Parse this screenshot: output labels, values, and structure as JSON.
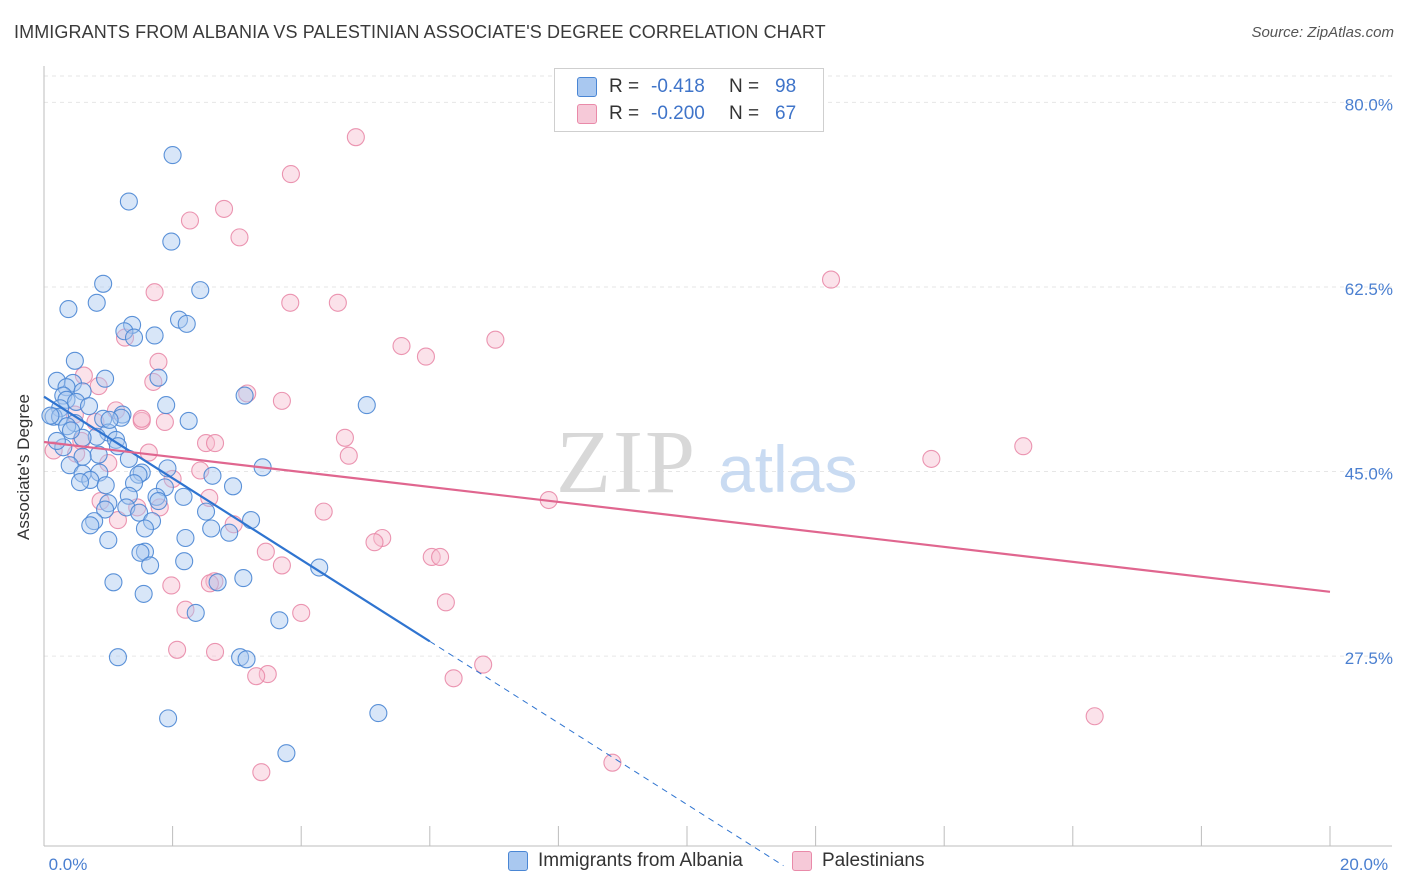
{
  "title": "IMMIGRANTS FROM ALBANIA VS PALESTINIAN ASSOCIATE'S DEGREE CORRELATION CHART",
  "source": "Source: ZipAtlas.com",
  "watermark": {
    "zip": "ZIP",
    "atlas": "atlas"
  },
  "colors": {
    "blue_fill": "#a9c8f0",
    "blue_stroke": "#4a86d4",
    "blue_line": "#2f74d0",
    "pink_fill": "#f6bfd0",
    "pink_stroke": "#e98aa9",
    "pink_line": "#e0668f",
    "tick_text": "#4a7fd0",
    "grid": "#e6e6e6"
  },
  "legend_top": {
    "rows": [
      {
        "r_label": "R =",
        "r_value": "-0.418",
        "n_label": "N =",
        "n_value": "98",
        "series": "blue"
      },
      {
        "r_label": "R =",
        "r_value": "-0.200",
        "n_label": "N =",
        "n_value": "67",
        "series": "pink"
      }
    ]
  },
  "legend_bottom": {
    "items": [
      {
        "label": "Immigrants from Albania",
        "series": "blue"
      },
      {
        "label": "Palestinians",
        "series": "pink"
      }
    ]
  },
  "chart_data": {
    "type": "scatter",
    "title": "IMMIGRANTS FROM ALBANIA VS PALESTINIAN ASSOCIATE'S DEGREE CORRELATION CHART",
    "xlabel": "",
    "ylabel": "Associate's Degree",
    "xlim": [
      0,
      20
    ],
    "ylim": [
      9.5,
      82.5
    ],
    "x_ticks": [
      0,
      20
    ],
    "x_tick_labels": [
      "0.0%",
      "20.0%"
    ],
    "y_ticks": [
      27.5,
      45.0,
      62.5,
      80.0
    ],
    "y_tick_labels": [
      "27.5%",
      "45.0%",
      "62.5%",
      "80.0%"
    ],
    "grid": true,
    "legend_position": "top-center",
    "series": [
      {
        "name": "Immigrants from Albania",
        "color": "blue",
        "r": -0.418,
        "n": 98,
        "trend": {
          "x0": 0,
          "y0": 52.1,
          "x1": 6.0,
          "y1": 28.9,
          "dashed_to_x": 11.5
        },
        "points": [
          [
            2.0,
            75.0
          ],
          [
            1.32,
            70.6
          ],
          [
            1.98,
            66.8
          ],
          [
            0.92,
            62.8
          ],
          [
            2.43,
            62.2
          ],
          [
            0.82,
            61.0
          ],
          [
            0.38,
            60.4
          ],
          [
            2.1,
            59.4
          ],
          [
            2.22,
            59.0
          ],
          [
            1.37,
            58.9
          ],
          [
            1.25,
            58.3
          ],
          [
            1.72,
            57.9
          ],
          [
            1.4,
            57.7
          ],
          [
            0.48,
            55.5
          ],
          [
            1.78,
            53.9
          ],
          [
            0.95,
            53.8
          ],
          [
            0.2,
            53.6
          ],
          [
            0.45,
            53.4
          ],
          [
            0.35,
            53.0
          ],
          [
            0.6,
            52.6
          ],
          [
            0.3,
            52.2
          ],
          [
            3.12,
            52.2
          ],
          [
            0.35,
            51.8
          ],
          [
            0.5,
            51.6
          ],
          [
            1.9,
            51.3
          ],
          [
            5.02,
            51.3
          ],
          [
            0.25,
            51.0
          ],
          [
            1.22,
            50.4
          ],
          [
            0.15,
            50.2
          ],
          [
            0.25,
            50.2
          ],
          [
            1.2,
            50.1
          ],
          [
            0.92,
            50.0
          ],
          [
            2.25,
            49.8
          ],
          [
            0.48,
            49.6
          ],
          [
            0.36,
            49.3
          ],
          [
            1.0,
            48.7
          ],
          [
            0.82,
            48.3
          ],
          [
            0.6,
            48.2
          ],
          [
            1.12,
            48.0
          ],
          [
            1.15,
            47.4
          ],
          [
            0.3,
            47.3
          ],
          [
            0.85,
            46.6
          ],
          [
            0.6,
            46.4
          ],
          [
            1.32,
            46.2
          ],
          [
            0.4,
            45.6
          ],
          [
            3.4,
            45.4
          ],
          [
            1.92,
            45.3
          ],
          [
            0.86,
            44.9
          ],
          [
            0.6,
            44.8
          ],
          [
            1.52,
            44.9
          ],
          [
            1.47,
            44.7
          ],
          [
            2.62,
            44.6
          ],
          [
            0.72,
            44.2
          ],
          [
            0.56,
            44.0
          ],
          [
            1.4,
            43.9
          ],
          [
            0.96,
            43.7
          ],
          [
            1.88,
            43.5
          ],
          [
            2.94,
            43.6
          ],
          [
            2.17,
            42.6
          ],
          [
            1.32,
            42.7
          ],
          [
            1.75,
            42.6
          ],
          [
            1.78,
            42.2
          ],
          [
            1.0,
            42.0
          ],
          [
            1.28,
            41.6
          ],
          [
            0.95,
            41.4
          ],
          [
            2.52,
            41.2
          ],
          [
            1.48,
            41.1
          ],
          [
            1.68,
            40.3
          ],
          [
            3.22,
            40.4
          ],
          [
            0.78,
            40.3
          ],
          [
            0.72,
            39.9
          ],
          [
            2.6,
            39.6
          ],
          [
            1.57,
            39.6
          ],
          [
            2.88,
            39.2
          ],
          [
            2.2,
            38.7
          ],
          [
            1.0,
            38.5
          ],
          [
            1.57,
            37.4
          ],
          [
            1.5,
            37.3
          ],
          [
            2.18,
            36.5
          ],
          [
            1.65,
            36.1
          ],
          [
            4.28,
            35.9
          ],
          [
            3.1,
            34.9
          ],
          [
            1.08,
            34.5
          ],
          [
            2.7,
            34.5
          ],
          [
            1.55,
            33.4
          ],
          [
            2.36,
            31.6
          ],
          [
            3.66,
            30.9
          ],
          [
            1.15,
            27.4
          ],
          [
            3.05,
            27.4
          ],
          [
            3.15,
            27.2
          ],
          [
            5.2,
            22.1
          ],
          [
            1.93,
            21.6
          ],
          [
            3.77,
            18.3
          ],
          [
            0.2,
            47.9
          ],
          [
            0.1,
            50.3
          ],
          [
            0.7,
            51.2
          ],
          [
            0.42,
            48.9
          ],
          [
            1.02,
            49.9
          ]
        ]
      },
      {
        "name": "Palestinians",
        "color": "pink",
        "r": -0.2,
        "n": 67,
        "trend": {
          "x0": 0,
          "y0": 47.8,
          "x1": 20,
          "y1": 33.6
        },
        "points": [
          [
            4.85,
            76.7
          ],
          [
            3.84,
            73.2
          ],
          [
            2.8,
            69.9
          ],
          [
            2.27,
            68.8
          ],
          [
            3.04,
            67.2
          ],
          [
            12.24,
            63.2
          ],
          [
            1.72,
            62.0
          ],
          [
            3.83,
            61.0
          ],
          [
            4.57,
            61.0
          ],
          [
            7.02,
            57.5
          ],
          [
            1.26,
            57.7
          ],
          [
            5.56,
            56.9
          ],
          [
            5.94,
            55.9
          ],
          [
            1.78,
            55.4
          ],
          [
            0.62,
            54.1
          ],
          [
            1.7,
            53.5
          ],
          [
            0.85,
            53.1
          ],
          [
            3.16,
            52.4
          ],
          [
            3.7,
            51.7
          ],
          [
            1.12,
            50.8
          ],
          [
            0.48,
            50.4
          ],
          [
            1.52,
            49.8
          ],
          [
            0.8,
            49.7
          ],
          [
            1.88,
            49.7
          ],
          [
            4.68,
            48.2
          ],
          [
            15.23,
            47.4
          ],
          [
            2.52,
            47.7
          ],
          [
            2.66,
            47.7
          ],
          [
            1.63,
            46.8
          ],
          [
            0.5,
            46.7
          ],
          [
            4.74,
            46.5
          ],
          [
            13.8,
            46.2
          ],
          [
            0.15,
            47.0
          ],
          [
            1.0,
            45.8
          ],
          [
            2.43,
            45.1
          ],
          [
            2.0,
            44.3
          ],
          [
            0.88,
            42.2
          ],
          [
            1.45,
            41.6
          ],
          [
            7.85,
            42.3
          ],
          [
            2.57,
            42.5
          ],
          [
            1.8,
            41.6
          ],
          [
            4.35,
            41.2
          ],
          [
            2.95,
            40.0
          ],
          [
            1.15,
            40.4
          ],
          [
            5.26,
            38.7
          ],
          [
            5.14,
            38.3
          ],
          [
            3.45,
            37.4
          ],
          [
            6.03,
            36.9
          ],
          [
            6.16,
            36.9
          ],
          [
            3.7,
            36.1
          ],
          [
            1.98,
            34.2
          ],
          [
            2.65,
            34.6
          ],
          [
            2.58,
            34.4
          ],
          [
            6.25,
            32.6
          ],
          [
            2.2,
            31.9
          ],
          [
            4.0,
            31.6
          ],
          [
            2.07,
            28.1
          ],
          [
            2.66,
            27.9
          ],
          [
            6.83,
            26.7
          ],
          [
            3.48,
            25.8
          ],
          [
            3.3,
            25.6
          ],
          [
            6.37,
            25.4
          ],
          [
            16.34,
            21.8
          ],
          [
            8.84,
            17.4
          ],
          [
            3.38,
            16.5
          ],
          [
            1.52,
            50.0
          ],
          [
            0.58,
            47.9
          ]
        ]
      }
    ]
  }
}
